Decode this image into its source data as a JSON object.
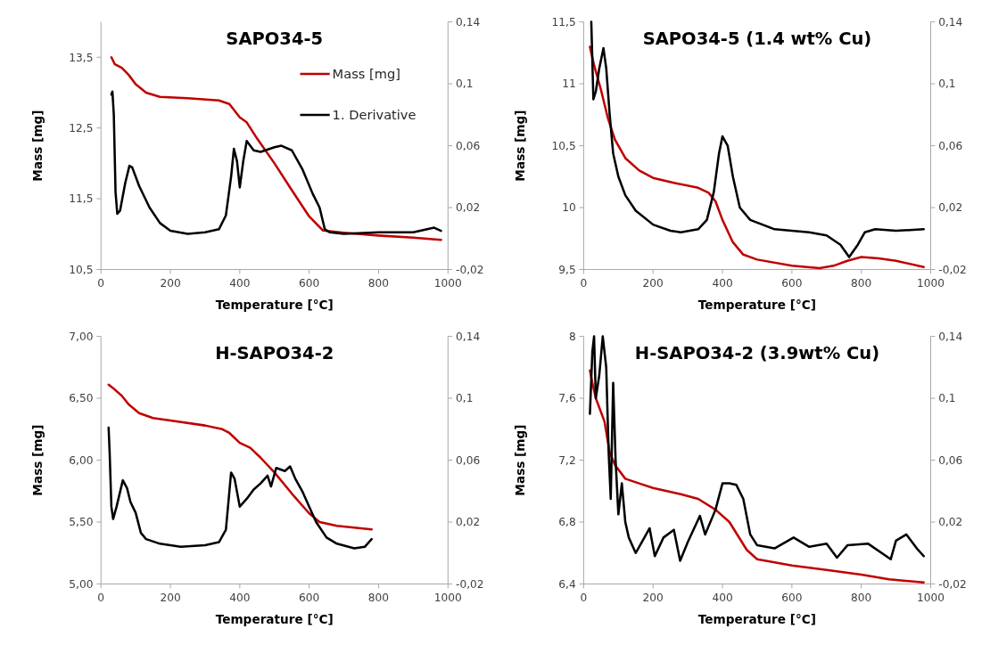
{
  "chart_data": [
    {
      "type": "line",
      "title": "SAPO34-5",
      "xlabel": "Temperature [°C]",
      "ylabel": "Mass [mg]",
      "legend": "top right",
      "xlim": [
        0,
        1000
      ],
      "xticks": [
        0,
        200,
        400,
        600,
        800,
        1000
      ],
      "ylim": [
        10.5,
        14
      ],
      "yticks": [
        {
          "value": 10.5,
          "label": "10,5"
        },
        {
          "value": 11.5,
          "label": "11,5"
        },
        {
          "value": 12.5,
          "label": "12,5"
        },
        {
          "value": 13.5,
          "label": "13,5"
        }
      ],
      "y2lim": [
        -0.02,
        0.14
      ],
      "y2ticks": [
        {
          "value": -0.02,
          "label": "-0,02"
        },
        {
          "value": 0.02,
          "label": "0,02"
        },
        {
          "value": 0.06,
          "label": "0,06"
        },
        {
          "value": 0.1,
          "label": "0,1"
        },
        {
          "value": 0.14,
          "label": "0,14"
        }
      ],
      "series": [
        {
          "name": "Mass [mg]",
          "color": "#c00000",
          "x": [
            30,
            40,
            60,
            80,
            100,
            130,
            170,
            250,
            340,
            370,
            400,
            420,
            450,
            500,
            550,
            600,
            640,
            700,
            800,
            900,
            980
          ],
          "values": [
            13.5,
            13.4,
            13.35,
            13.25,
            13.12,
            13.0,
            12.94,
            12.92,
            12.89,
            12.84,
            12.65,
            12.58,
            12.35,
            12.0,
            11.62,
            11.25,
            11.05,
            11.02,
            10.98,
            10.95,
            10.92
          ]
        },
        {
          "name": "1. Derivative",
          "color": "#000000",
          "axis": "y2",
          "x": [
            30,
            33,
            37,
            42,
            47,
            55,
            70,
            82,
            90,
            110,
            140,
            170,
            200,
            250,
            300,
            340,
            360,
            375,
            383,
            392,
            400,
            410,
            420,
            440,
            460,
            500,
            520,
            550,
            580,
            610,
            630,
            645,
            660,
            700,
            800,
            900,
            960,
            980
          ],
          "values": [
            0.093,
            0.095,
            0.08,
            0.03,
            0.016,
            0.018,
            0.036,
            0.047,
            0.046,
            0.034,
            0.02,
            0.01,
            0.005,
            0.003,
            0.004,
            0.006,
            0.015,
            0.04,
            0.058,
            0.05,
            0.033,
            0.05,
            0.063,
            0.057,
            0.056,
            0.059,
            0.06,
            0.057,
            0.045,
            0.029,
            0.02,
            0.006,
            0.004,
            0.003,
            0.004,
            0.004,
            0.007,
            0.005
          ]
        }
      ]
    },
    {
      "type": "line",
      "title": "SAPO34-5 (1.4 wt% Cu)",
      "xlabel": "Temperature [°C]",
      "ylabel": "Mass [mg]",
      "xlim": [
        0,
        1000
      ],
      "xticks": [
        0,
        200,
        400,
        600,
        800,
        1000
      ],
      "ylim": [
        9.5,
        11.5
      ],
      "yticks": [
        {
          "value": 9.5,
          "label": "9,5"
        },
        10,
        {
          "value": 10.5,
          "label": "10,5"
        },
        11,
        {
          "value": 11.5,
          "label": "11,5"
        }
      ],
      "y2lim": [
        -0.02,
        0.14
      ],
      "y2ticks": [
        {
          "value": -0.02,
          "label": "-0,02"
        },
        {
          "value": 0.02,
          "label": "0,02"
        },
        {
          "value": 0.06,
          "label": "0,06"
        },
        {
          "value": 0.1,
          "label": "0,1"
        },
        {
          "value": 0.14,
          "label": "0,14"
        }
      ],
      "series": [
        {
          "color": "#c00000",
          "x": [
            18,
            30,
            50,
            70,
            90,
            120,
            160,
            200,
            260,
            330,
            360,
            380,
            400,
            430,
            460,
            500,
            600,
            680,
            720,
            760,
            800,
            850,
            900,
            980
          ],
          "values": [
            11.3,
            11.15,
            10.95,
            10.72,
            10.55,
            10.4,
            10.3,
            10.24,
            10.2,
            10.16,
            10.12,
            10.05,
            9.9,
            9.72,
            9.62,
            9.58,
            9.53,
            9.51,
            9.53,
            9.57,
            9.6,
            9.59,
            9.57,
            9.52
          ]
        },
        {
          "color": "#000000",
          "axis": "y2",
          "x": [
            22,
            28,
            35,
            45,
            57,
            65,
            75,
            85,
            100,
            120,
            150,
            200,
            250,
            280,
            330,
            355,
            375,
            390,
            400,
            415,
            430,
            450,
            480,
            550,
            650,
            700,
            740,
            765,
            790,
            810,
            840,
            900,
            980
          ],
          "values": [
            0.14,
            0.09,
            0.095,
            0.11,
            0.123,
            0.11,
            0.08,
            0.055,
            0.04,
            0.028,
            0.018,
            0.009,
            0.005,
            0.004,
            0.006,
            0.012,
            0.03,
            0.055,
            0.066,
            0.06,
            0.04,
            0.02,
            0.012,
            0.006,
            0.004,
            0.002,
            -0.004,
            -0.012,
            -0.004,
            0.004,
            0.006,
            0.005,
            0.006
          ]
        }
      ]
    },
    {
      "type": "line",
      "title": "H-SAPO34-2",
      "xlabel": "Temperature [°C]",
      "ylabel": "Mass [mg]",
      "xlim": [
        0,
        1000
      ],
      "xticks": [
        0,
        200,
        400,
        600,
        800,
        1000
      ],
      "ylim": [
        5,
        7
      ],
      "yticks": [
        {
          "value": 5,
          "label": "5,00"
        },
        {
          "value": 5.5,
          "label": "5,50"
        },
        {
          "value": 6,
          "label": "6,00"
        },
        {
          "value": 6.5,
          "label": "6,50"
        },
        {
          "value": 7,
          "label": "7,00"
        }
      ],
      "y2lim": [
        -0.02,
        0.14
      ],
      "y2ticks": [
        {
          "value": -0.02,
          "label": "-0,02"
        },
        {
          "value": 0.02,
          "label": "0,02"
        },
        {
          "value": 0.06,
          "label": "0,06"
        },
        {
          "value": 0.1,
          "label": "0,1"
        },
        {
          "value": 0.14,
          "label": "0,14"
        }
      ],
      "series": [
        {
          "color": "#c00000",
          "x": [
            22,
            40,
            60,
            80,
            110,
            150,
            200,
            300,
            350,
            370,
            400,
            430,
            460,
            500,
            550,
            600,
            630,
            680,
            780
          ],
          "values": [
            6.61,
            6.57,
            6.52,
            6.45,
            6.38,
            6.34,
            6.32,
            6.28,
            6.25,
            6.22,
            6.14,
            6.1,
            6.02,
            5.9,
            5.73,
            5.57,
            5.5,
            5.47,
            5.44
          ]
        },
        {
          "color": "#000000",
          "axis": "y2",
          "x": [
            22,
            25,
            30,
            35,
            45,
            63,
            75,
            85,
            100,
            115,
            130,
            170,
            230,
            300,
            340,
            360,
            375,
            385,
            400,
            420,
            440,
            460,
            480,
            490,
            505,
            530,
            545,
            560,
            580,
            600,
            620,
            650,
            680,
            730,
            760,
            780
          ],
          "values": [
            0.081,
            0.065,
            0.03,
            0.022,
            0.03,
            0.047,
            0.042,
            0.033,
            0.026,
            0.013,
            0.009,
            0.006,
            0.004,
            0.005,
            0.007,
            0.015,
            0.052,
            0.048,
            0.03,
            0.035,
            0.041,
            0.045,
            0.05,
            0.043,
            0.055,
            0.053,
            0.056,
            0.048,
            0.04,
            0.03,
            0.02,
            0.01,
            0.006,
            0.003,
            0.004,
            0.009
          ]
        }
      ]
    },
    {
      "type": "line",
      "title": "H-SAPO34-2 (3.9wt% Cu)",
      "xlabel": "Temperature [°C]",
      "ylabel": "Mass [mg]",
      "xlim": [
        0,
        1000
      ],
      "xticks": [
        0,
        200,
        400,
        600,
        800,
        1000
      ],
      "ylim": [
        6.4,
        8
      ],
      "yticks": [
        {
          "value": 6.4,
          "label": "6,4"
        },
        {
          "value": 6.8,
          "label": "6,8"
        },
        {
          "value": 7.2,
          "label": "7,2"
        },
        {
          "value": 7.6,
          "label": "7,6"
        },
        8
      ],
      "y2lim": [
        -0.02,
        0.14
      ],
      "y2ticks": [
        {
          "value": -0.02,
          "label": "-0,02"
        },
        {
          "value": 0.02,
          "label": "0,02"
        },
        {
          "value": 0.06,
          "label": "0,06"
        },
        {
          "value": 0.1,
          "label": "0,1"
        },
        {
          "value": 0.14,
          "label": "0,14"
        }
      ],
      "series": [
        {
          "color": "#c00000",
          "x": [
            18,
            25,
            35,
            60,
            75,
            90,
            120,
            160,
            200,
            280,
            330,
            380,
            420,
            470,
            500,
            600,
            700,
            800,
            880,
            980
          ],
          "values": [
            7.78,
            7.7,
            7.6,
            7.45,
            7.25,
            7.17,
            7.08,
            7.05,
            7.02,
            6.98,
            6.95,
            6.88,
            6.8,
            6.62,
            6.56,
            6.52,
            6.49,
            6.46,
            6.43,
            6.41
          ]
        },
        {
          "color": "#000000",
          "axis": "y2",
          "x": [
            18,
            25,
            30,
            35,
            45,
            55,
            65,
            72,
            78,
            85,
            92,
            100,
            110,
            120,
            130,
            150,
            170,
            190,
            205,
            230,
            260,
            278,
            300,
            335,
            350,
            380,
            400,
            420,
            440,
            460,
            480,
            500,
            550,
            605,
            650,
            700,
            730,
            760,
            820,
            885,
            900,
            930,
            960,
            980
          ],
          "values": [
            0.09,
            0.13,
            0.14,
            0.1,
            0.115,
            0.14,
            0.12,
            0.065,
            0.035,
            0.11,
            0.06,
            0.025,
            0.045,
            0.02,
            0.01,
            0.0,
            0.008,
            0.016,
            -0.002,
            0.01,
            0.015,
            -0.005,
            0.007,
            0.024,
            0.012,
            0.028,
            0.045,
            0.045,
            0.044,
            0.035,
            0.012,
            0.005,
            0.003,
            0.01,
            0.004,
            0.006,
            -0.003,
            0.005,
            0.006,
            -0.004,
            0.008,
            0.012,
            0.003,
            -0.002
          ]
        }
      ]
    }
  ]
}
